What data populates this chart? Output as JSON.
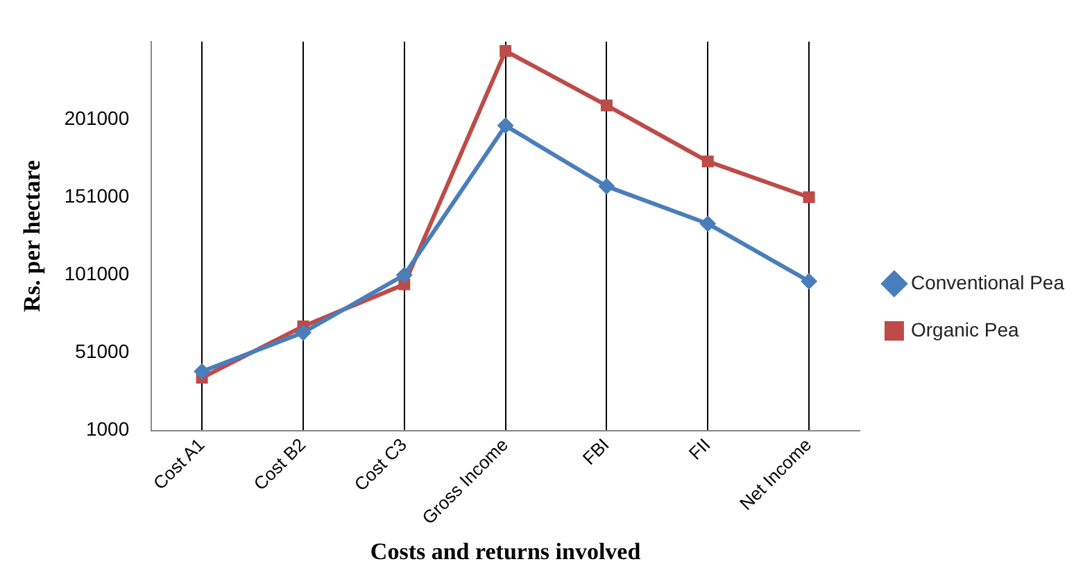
{
  "chart_data": {
    "type": "line",
    "xlabel": "Costs and returns involved",
    "ylabel": "Rs. per hectare",
    "categories": [
      "Cost A1",
      "Cost B2",
      "Cost C3",
      "Gross Income",
      "FBI",
      "FII",
      "Net Income"
    ],
    "series": [
      {
        "name": "Conventional Pea",
        "color": "#4a7ebb",
        "marker": "diamond",
        "values": [
          39000,
          64000,
          101000,
          197000,
          158000,
          134000,
          97000
        ]
      },
      {
        "name": "Organic Pea",
        "color": "#be4b48",
        "marker": "square",
        "values": [
          35000,
          68000,
          95000,
          245000,
          210000,
          174000,
          151000
        ]
      }
    ],
    "ylim": [
      1000,
      251000
    ],
    "yticks": [
      1000,
      51000,
      101000,
      151000,
      201000
    ],
    "grid": "x",
    "legend": "right"
  }
}
